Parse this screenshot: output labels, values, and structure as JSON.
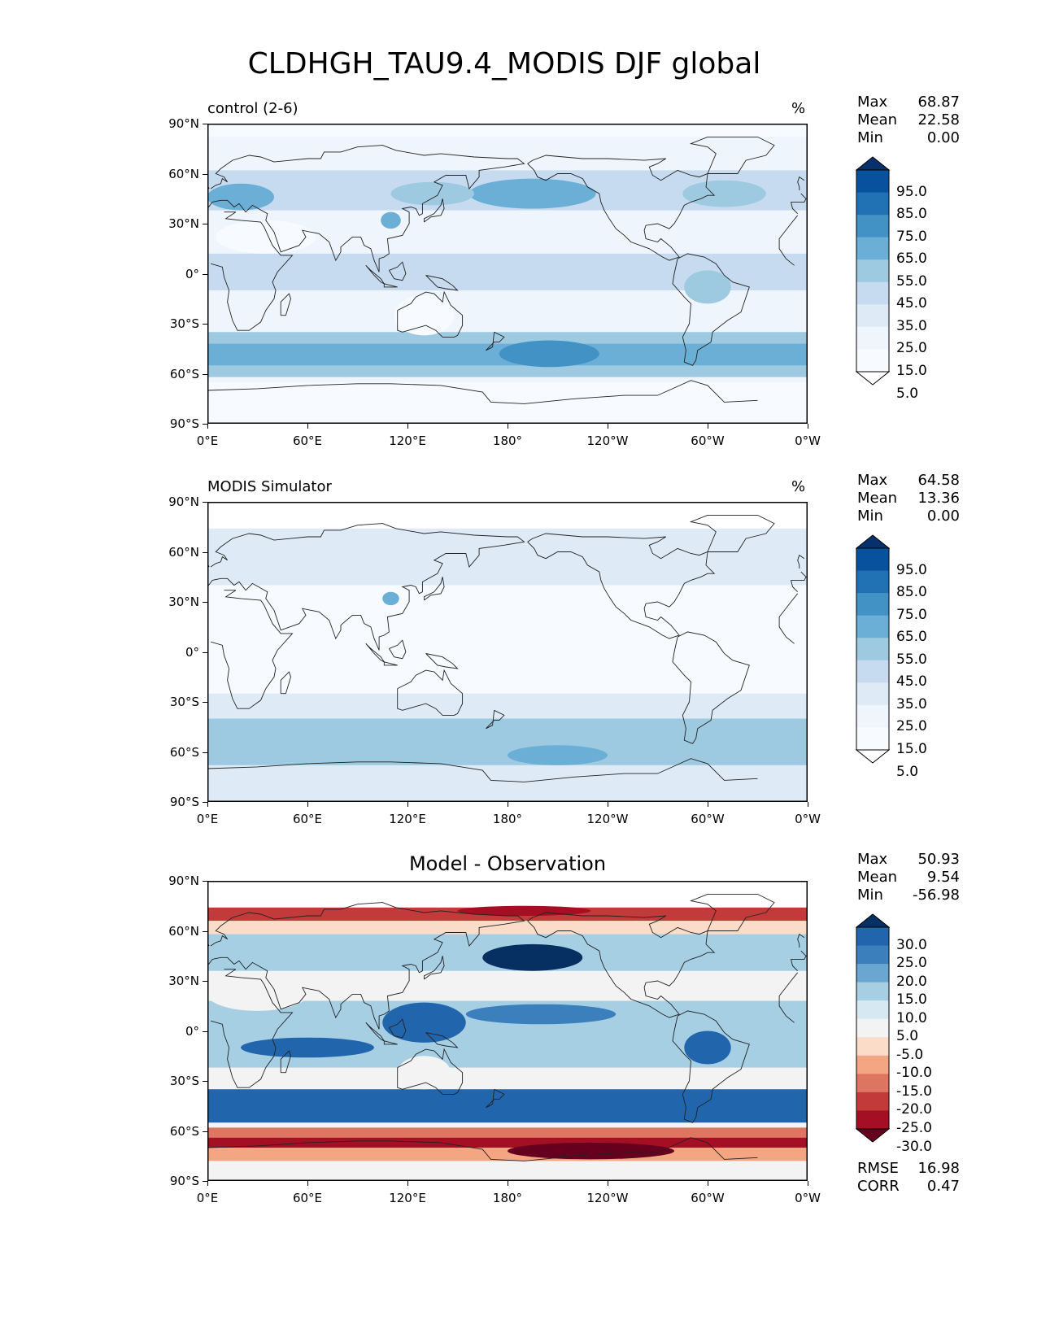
{
  "figure": {
    "title": "CLDHGH_TAU9.4_MODIS DJF global"
  },
  "panels": [
    {
      "id": "control",
      "left_title": "control (2-6)",
      "center_title": "",
      "units": "%",
      "stats": [
        {
          "label": "Max",
          "value": "68.87"
        },
        {
          "label": "Mean",
          "value": "22.58"
        },
        {
          "label": "Min",
          "value": "0.00"
        }
      ],
      "colorbar": {
        "type": "sequential-blues",
        "labels": [
          "95.0",
          "85.0",
          "75.0",
          "65.0",
          "55.0",
          "45.0",
          "35.0",
          "25.0",
          "15.0",
          "5.0"
        ],
        "colors": [
          "#08306b",
          "#08519c",
          "#2171b5",
          "#4292c6",
          "#6baed6",
          "#9ecae1",
          "#c6dbef",
          "#deebf7",
          "#eef5fc",
          "#f7fbff",
          "#ffffff"
        ]
      },
      "extra_stats": []
    },
    {
      "id": "obs",
      "left_title": "MODIS Simulator",
      "center_title": "",
      "units": "%",
      "stats": [
        {
          "label": "Max",
          "value": "64.58"
        },
        {
          "label": "Mean",
          "value": "13.36"
        },
        {
          "label": "Min",
          "value": "0.00"
        }
      ],
      "colorbar": {
        "type": "sequential-blues",
        "labels": [
          "95.0",
          "85.0",
          "75.0",
          "65.0",
          "55.0",
          "45.0",
          "35.0",
          "25.0",
          "15.0",
          "5.0"
        ],
        "colors": [
          "#08306b",
          "#08519c",
          "#2171b5",
          "#4292c6",
          "#6baed6",
          "#9ecae1",
          "#c6dbef",
          "#deebf7",
          "#eef5fc",
          "#f7fbff",
          "#ffffff"
        ]
      },
      "extra_stats": []
    },
    {
      "id": "diff",
      "left_title": "",
      "center_title": "Model - Observation",
      "units": "",
      "stats": [
        {
          "label": "Max",
          "value": "50.93"
        },
        {
          "label": "Mean",
          "value": "9.54"
        },
        {
          "label": "Min",
          "value": "-56.98"
        }
      ],
      "colorbar": {
        "type": "diverging-RdBu",
        "labels": [
          "30.0",
          "25.0",
          "20.0",
          "15.0",
          "10.0",
          "5.0",
          "-5.0",
          "-10.0",
          "-15.0",
          "-20.0",
          "-25.0",
          "-30.0"
        ],
        "colors": [
          "#053061",
          "#2166ac",
          "#3b7fbc",
          "#6aa6d0",
          "#a6cfe4",
          "#d6e8f2",
          "#f3f3f3",
          "#fbdcc9",
          "#f4a582",
          "#de7560",
          "#c23a3a",
          "#a50f23",
          "#67001f"
        ]
      },
      "extra_stats": [
        {
          "label": "RMSE",
          "value": "16.98"
        },
        {
          "label": "CORR",
          "value": "0.47"
        }
      ]
    }
  ],
  "lat_ticks": [
    "90°N",
    "60°N",
    "30°N",
    "0°",
    "30°S",
    "60°S",
    "90°S"
  ],
  "lon_ticks": [
    "0°E",
    "60°E",
    "120°E",
    "180°",
    "120°W",
    "60°W",
    "0°W"
  ]
}
